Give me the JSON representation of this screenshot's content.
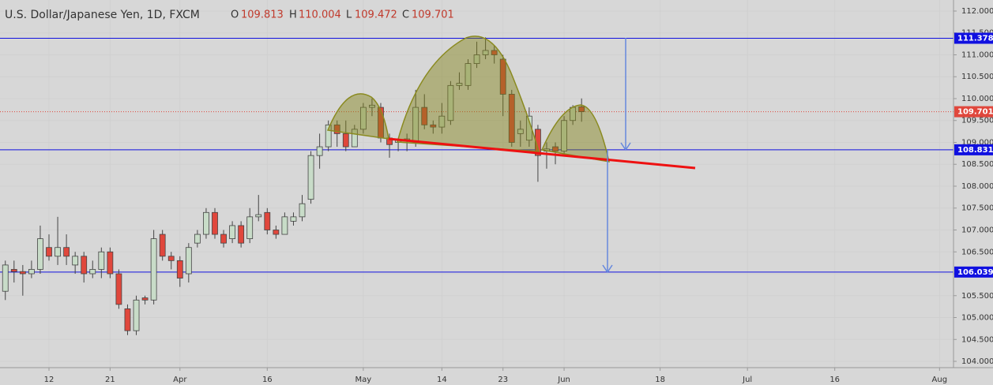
{
  "chart_data": {
    "type": "candlestick",
    "title": "U.S. Dollar/Japanese Yen, 1D, FXCM",
    "header": {
      "open_label": "O",
      "open": 109.813,
      "high_label": "H",
      "high": 110.004,
      "low_label": "L",
      "low": 109.472,
      "close_label": "C",
      "close": 109.701
    },
    "open": [
      105.6,
      106.1,
      106.05,
      106.0,
      106.1,
      106.6,
      106.4,
      106.6,
      106.2,
      106.4,
      106.0,
      106.1,
      106.5,
      106.0,
      105.2,
      104.7,
      105.45,
      105.4,
      106.9,
      106.4,
      106.3,
      106.0,
      106.7,
      106.9,
      107.4,
      106.9,
      106.8,
      107.1,
      106.8,
      107.3,
      107.4,
      107.0,
      106.9,
      107.2,
      107.3,
      107.7,
      108.7,
      108.9,
      109.4,
      109.2,
      108.9,
      109.3,
      109.8,
      109.8,
      109.1,
      109.0,
      109.05,
      109.0,
      109.8,
      109.4,
      109.35,
      109.5,
      110.3,
      110.3,
      110.8,
      111.0,
      111.1,
      110.9,
      110.1,
      109.2,
      109.05,
      109.3,
      108.8,
      108.9,
      108.8,
      109.5,
      109.813
    ],
    "high": [
      106.3,
      106.3,
      106.2,
      106.3,
      107.1,
      106.9,
      107.3,
      106.9,
      106.5,
      106.5,
      106.3,
      106.6,
      106.6,
      106.1,
      105.3,
      105.5,
      105.5,
      107.0,
      107.0,
      106.5,
      106.4,
      106.7,
      107.0,
      107.5,
      107.5,
      107.0,
      107.2,
      107.2,
      107.5,
      107.8,
      107.5,
      107.1,
      107.4,
      107.4,
      107.8,
      108.8,
      109.2,
      109.5,
      109.5,
      109.5,
      109.4,
      109.9,
      110.0,
      109.9,
      109.2,
      109.1,
      109.2,
      110.2,
      110.1,
      109.5,
      109.9,
      110.4,
      110.6,
      110.9,
      111.3,
      111.4,
      111.2,
      111.0,
      110.2,
      109.5,
      109.8,
      109.4,
      109.0,
      109.0,
      109.6,
      109.85,
      110.004
    ],
    "low": [
      105.4,
      105.8,
      105.5,
      105.9,
      106.0,
      106.3,
      106.2,
      106.2,
      106.0,
      105.8,
      105.9,
      105.9,
      105.9,
      105.2,
      104.6,
      104.6,
      105.3,
      105.3,
      106.3,
      106.1,
      105.7,
      105.8,
      106.6,
      106.8,
      106.8,
      106.6,
      106.7,
      106.6,
      106.7,
      107.2,
      106.9,
      106.8,
      106.9,
      107.1,
      107.2,
      107.6,
      108.4,
      108.8,
      108.9,
      108.8,
      108.9,
      109.2,
      109.6,
      109.0,
      108.65,
      108.8,
      108.8,
      108.9,
      109.3,
      109.2,
      109.2,
      109.4,
      110.2,
      110.2,
      110.7,
      110.9,
      110.8,
      109.6,
      108.9,
      108.9,
      108.9,
      108.1,
      108.4,
      108.5,
      108.7,
      109.4,
      109.472
    ],
    "close": [
      106.2,
      106.05,
      106.0,
      106.1,
      106.8,
      106.4,
      106.6,
      106.4,
      106.4,
      106.0,
      106.1,
      106.5,
      106.0,
      105.3,
      104.7,
      105.4,
      105.4,
      106.8,
      106.4,
      106.3,
      105.9,
      106.6,
      106.9,
      107.4,
      106.9,
      106.7,
      107.1,
      106.7,
      107.3,
      107.35,
      107.0,
      106.9,
      107.3,
      107.3,
      107.6,
      108.7,
      108.9,
      109.4,
      109.2,
      108.9,
      109.3,
      109.8,
      109.85,
      109.1,
      108.95,
      109.05,
      109.08,
      109.8,
      109.4,
      109.35,
      109.6,
      110.3,
      110.35,
      110.8,
      111.0,
      111.1,
      111.0,
      110.1,
      109.0,
      109.3,
      109.6,
      108.7,
      108.85,
      108.8,
      109.5,
      109.8,
      109.701
    ],
    "up_color": "#c8dcc8",
    "down_color": "#e0473c",
    "xlim": [
      -0.61,
      108.6
    ],
    "xticks": [
      {
        "value": 5,
        "label": "12"
      },
      {
        "value": 12,
        "label": "21"
      },
      {
        "value": 20,
        "label": "Apr"
      },
      {
        "value": 30,
        "label": "16"
      },
      {
        "value": 41,
        "label": "May"
      },
      {
        "value": 50,
        "label": "14"
      },
      {
        "value": 57,
        "label": "23"
      },
      {
        "value": 64,
        "label": "Jun"
      },
      {
        "value": 75,
        "label": "18"
      },
      {
        "value": 85,
        "label": "Jul"
      },
      {
        "value": 95,
        "label": "16"
      },
      {
        "value": 107,
        "label": "Aug"
      }
    ],
    "ylim": [
      103.856,
      112.252
    ],
    "yticks": [
      {
        "value": 104,
        "label": "104.000"
      },
      {
        "value": 104.5,
        "label": "104.500"
      },
      {
        "value": 105,
        "label": "105.000"
      },
      {
        "value": 105.5,
        "label": "105.500"
      },
      {
        "value": 106,
        "label": "106.000"
      },
      {
        "value": 106.5,
        "label": "106.500"
      },
      {
        "value": 107,
        "label": "107.000"
      },
      {
        "value": 107.5,
        "label": "107.500"
      },
      {
        "value": 108,
        "label": "108.000"
      },
      {
        "value": 108.5,
        "label": "108.500"
      },
      {
        "value": 109,
        "label": "109.000"
      },
      {
        "value": 109.5,
        "label": "109.500"
      },
      {
        "value": 110,
        "label": "110.000"
      },
      {
        "value": 110.5,
        "label": "110.500"
      },
      {
        "value": 111,
        "label": "111.000"
      },
      {
        "value": 111.5,
        "label": "111.500"
      },
      {
        "value": 112,
        "label": "112.000"
      }
    ],
    "levels": [
      111.378,
      108.831,
      106.039
    ],
    "level_color": "#1010e0",
    "last_price": 109.701,
    "last_price_color": "#e0473c"
  }
}
